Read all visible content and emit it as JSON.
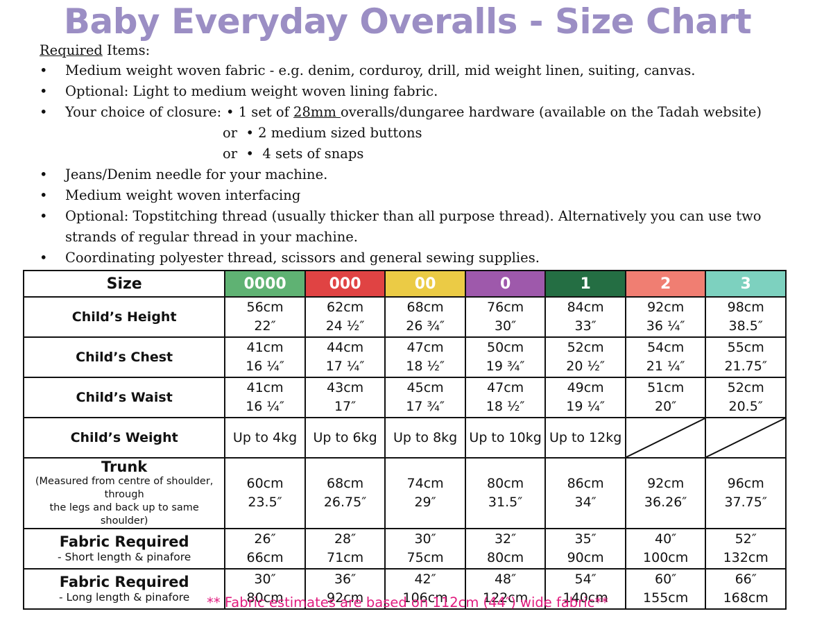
{
  "title": "Baby Everyday Overalls - Size Chart",
  "colors": {
    "title": "#9b8ec4",
    "footnote": "#e0197d",
    "sizes": [
      "#5fb273",
      "#e04343",
      "#ebcb45",
      "#9e59ab",
      "#246e43",
      "#f07e72",
      "#7dd1bf"
    ]
  },
  "required": {
    "heading_underlined": "Required",
    "heading_rest": " Items:",
    "bullet_glyph": "•",
    "items": [
      "Medium weight woven fabric - e.g. denim, corduroy, drill, mid weight linen, suiting, canvas.",
      "Optional: Light to medium weight woven lining fabric."
    ],
    "closure": {
      "label": "Your choice of closure:",
      "option1_prefix": "• 1 set of ",
      "option1_underlined": "28mm ",
      "option1_suffix": "overalls/dungaree hardware (available on the Tadah website)",
      "option2": "or  • 2 medium sized buttons",
      "option3": "or  •  4 sets of snaps"
    },
    "items_after": [
      "Jeans/Denim needle for your machine.",
      "Medium weight woven interfacing",
      "Optional: Topstitching thread (usually thicker than all purpose thread). Alternatively you can use two strands of regular thread in your machine.",
      "Coordinating polyester thread, scissors and general sewing supplies."
    ]
  },
  "table": {
    "size_header": "Size",
    "sizes": [
      "0000",
      "000",
      "00",
      "0",
      "1",
      "2",
      "3"
    ],
    "rows": {
      "height": {
        "label": "Child’s Height",
        "values": [
          [
            "56cm",
            "22″"
          ],
          [
            "62cm",
            "24 ½″"
          ],
          [
            "68cm",
            "26 ¾″"
          ],
          [
            "76cm",
            "30″"
          ],
          [
            "84cm",
            "33″"
          ],
          [
            "92cm",
            "36 ¼″"
          ],
          [
            "98cm",
            "38.5″"
          ]
        ]
      },
      "chest": {
        "label": "Child’s Chest",
        "values": [
          [
            "41cm",
            "16 ¼″"
          ],
          [
            "44cm",
            "17 ¼″"
          ],
          [
            "47cm",
            "18 ½″"
          ],
          [
            "50cm",
            "19 ¾″"
          ],
          [
            "52cm",
            "20 ½″"
          ],
          [
            "54cm",
            "21 ¼″"
          ],
          [
            "55cm",
            "21.75″"
          ]
        ]
      },
      "waist": {
        "label": "Child’s Waist",
        "values": [
          [
            "41cm",
            "16 ¼″"
          ],
          [
            "43cm",
            "17″"
          ],
          [
            "45cm",
            "17 ¾″"
          ],
          [
            "47cm",
            "18 ½″"
          ],
          [
            "49cm",
            "19 ¼″"
          ],
          [
            "51cm",
            "20″"
          ],
          [
            "52cm",
            "20.5″"
          ]
        ]
      },
      "weight": {
        "label": "Child’s Weight",
        "values": [
          "Up to 4kg",
          "Up to 6kg",
          "Up to 8kg",
          "Up to 10kg",
          "Up to 12kg"
        ]
      },
      "trunk": {
        "label": "Trunk",
        "sublabel_1": "(Measured from centre of shoulder, through",
        "sublabel_2": "the legs and back up to same shoulder)",
        "values": [
          [
            "60cm",
            "23.5″"
          ],
          [
            "68cm",
            "26.75″"
          ],
          [
            "74cm",
            "29″"
          ],
          [
            "80cm",
            "31.5″"
          ],
          [
            "86cm",
            "34″"
          ],
          [
            "92cm",
            "36.26″"
          ],
          [
            "96cm",
            "37.75″"
          ]
        ]
      },
      "fabric_short": {
        "label": "Fabric Required",
        "sublabel": "- Short length & pinafore",
        "values": [
          [
            "26″",
            "66cm"
          ],
          [
            "28″",
            "71cm"
          ],
          [
            "30″",
            "75cm"
          ],
          [
            "32″",
            "80cm"
          ],
          [
            "35″",
            "90cm"
          ],
          [
            "40″",
            "100cm"
          ],
          [
            "52″",
            "132cm"
          ]
        ]
      },
      "fabric_long": {
        "label": "Fabric Required",
        "sublabel": "- Long length & pinafore",
        "values": [
          [
            "30″",
            "80cm"
          ],
          [
            "36″",
            "92cm"
          ],
          [
            "42″",
            "106cm"
          ],
          [
            "48″",
            "122cm"
          ],
          [
            "54″",
            "140cm"
          ],
          [
            "60″",
            "155cm"
          ],
          [
            "66″",
            "168cm"
          ]
        ]
      }
    }
  },
  "footnote": "** Fabric estimates are based on 112cm (44″) wide fabric**"
}
